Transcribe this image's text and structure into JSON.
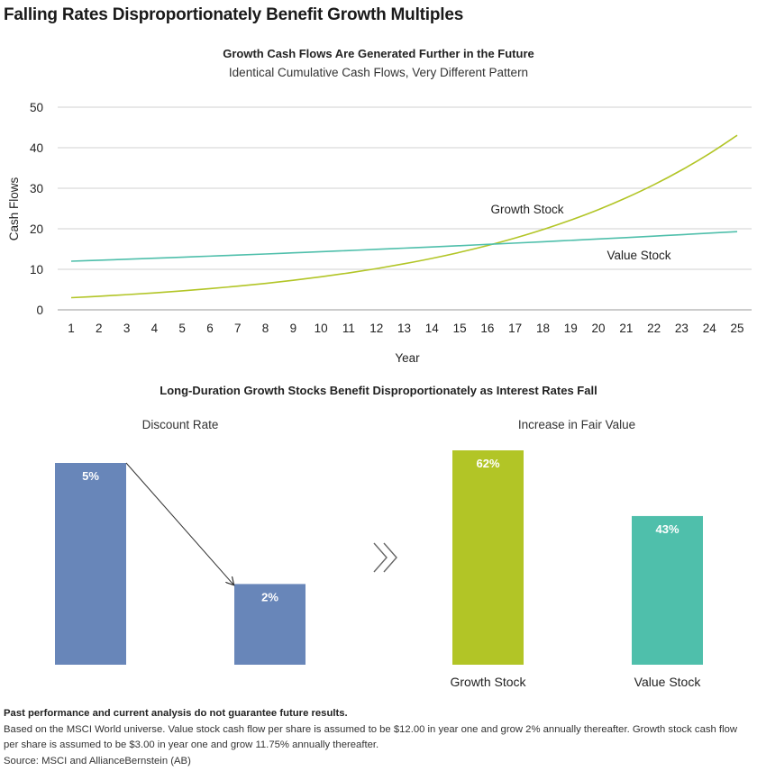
{
  "title": "Falling Rates Disproportionately Benefit Growth Multiples",
  "colors": {
    "growth": "#b2c526",
    "value": "#4fbfab",
    "discount_bar": "#6886b9",
    "grid": "#d0d0d0",
    "text": "#222222"
  },
  "chart_data": [
    {
      "type": "line",
      "title": "Growth Cash Flows Are Generated Further in the Future",
      "subtitle": "Identical Cumulative Cash Flows, Very Different Pattern",
      "xlabel": "Year",
      "ylabel": "Cash Flows",
      "ylim": [
        0,
        50
      ],
      "yticks": [
        0,
        10,
        20,
        30,
        40,
        50
      ],
      "grid": true,
      "x": [
        1,
        2,
        3,
        4,
        5,
        6,
        7,
        8,
        9,
        10,
        11,
        12,
        13,
        14,
        15,
        16,
        17,
        18,
        19,
        20,
        21,
        22,
        23,
        24,
        25
      ],
      "series": [
        {
          "name": "Growth Stock",
          "color": "#b2c526",
          "values": [
            3.0,
            3.35,
            3.75,
            4.19,
            4.68,
            5.23,
            5.84,
            6.52,
            7.29,
            8.15,
            9.1,
            10.17,
            11.37,
            12.7,
            14.19,
            15.86,
            17.72,
            19.8,
            22.13,
            24.72,
            27.63,
            30.87,
            34.5,
            38.55,
            43.07
          ]
        },
        {
          "name": "Value Stock",
          "color": "#4fbfab",
          "values": [
            12.0,
            12.24,
            12.48,
            12.73,
            12.99,
            13.25,
            13.51,
            13.78,
            14.06,
            14.34,
            14.63,
            14.92,
            15.22,
            15.52,
            15.83,
            16.15,
            16.47,
            16.8,
            17.14,
            17.48,
            17.83,
            18.19,
            18.55,
            18.92,
            19.3
          ]
        }
      ]
    },
    {
      "type": "bar",
      "title": "Long-Duration Growth Stocks Benefit Disproportionately as Interest Rates Fall",
      "panels": [
        {
          "subtitle": "Discount Rate",
          "categories": [
            "",
            ""
          ],
          "values": [
            5,
            2
          ],
          "labels": [
            "5%",
            "2%"
          ],
          "color": "#6886b9",
          "ylim": [
            0,
            5
          ]
        },
        {
          "subtitle": "Increase in Fair Value",
          "categories": [
            "Growth Stock",
            "Value Stock"
          ],
          "values": [
            62,
            43
          ],
          "labels": [
            "62%",
            "43%"
          ],
          "colors": [
            "#b2c526",
            "#4fbfab"
          ],
          "ylim": [
            0,
            62
          ]
        }
      ]
    }
  ],
  "footnotes": {
    "disclaimer": "Past performance and current analysis do not guarantee future results.",
    "line1": "Based on the MSCI World universe. Value stock cash flow per share is assumed to be $12.00 in year one and grow 2% annually thereafter. Growth stock cash flow per share is assumed to be $3.00 in year one and grow 11.75% annually thereafter.",
    "source": "Source: MSCI and AllianceBernstein (AB)"
  }
}
